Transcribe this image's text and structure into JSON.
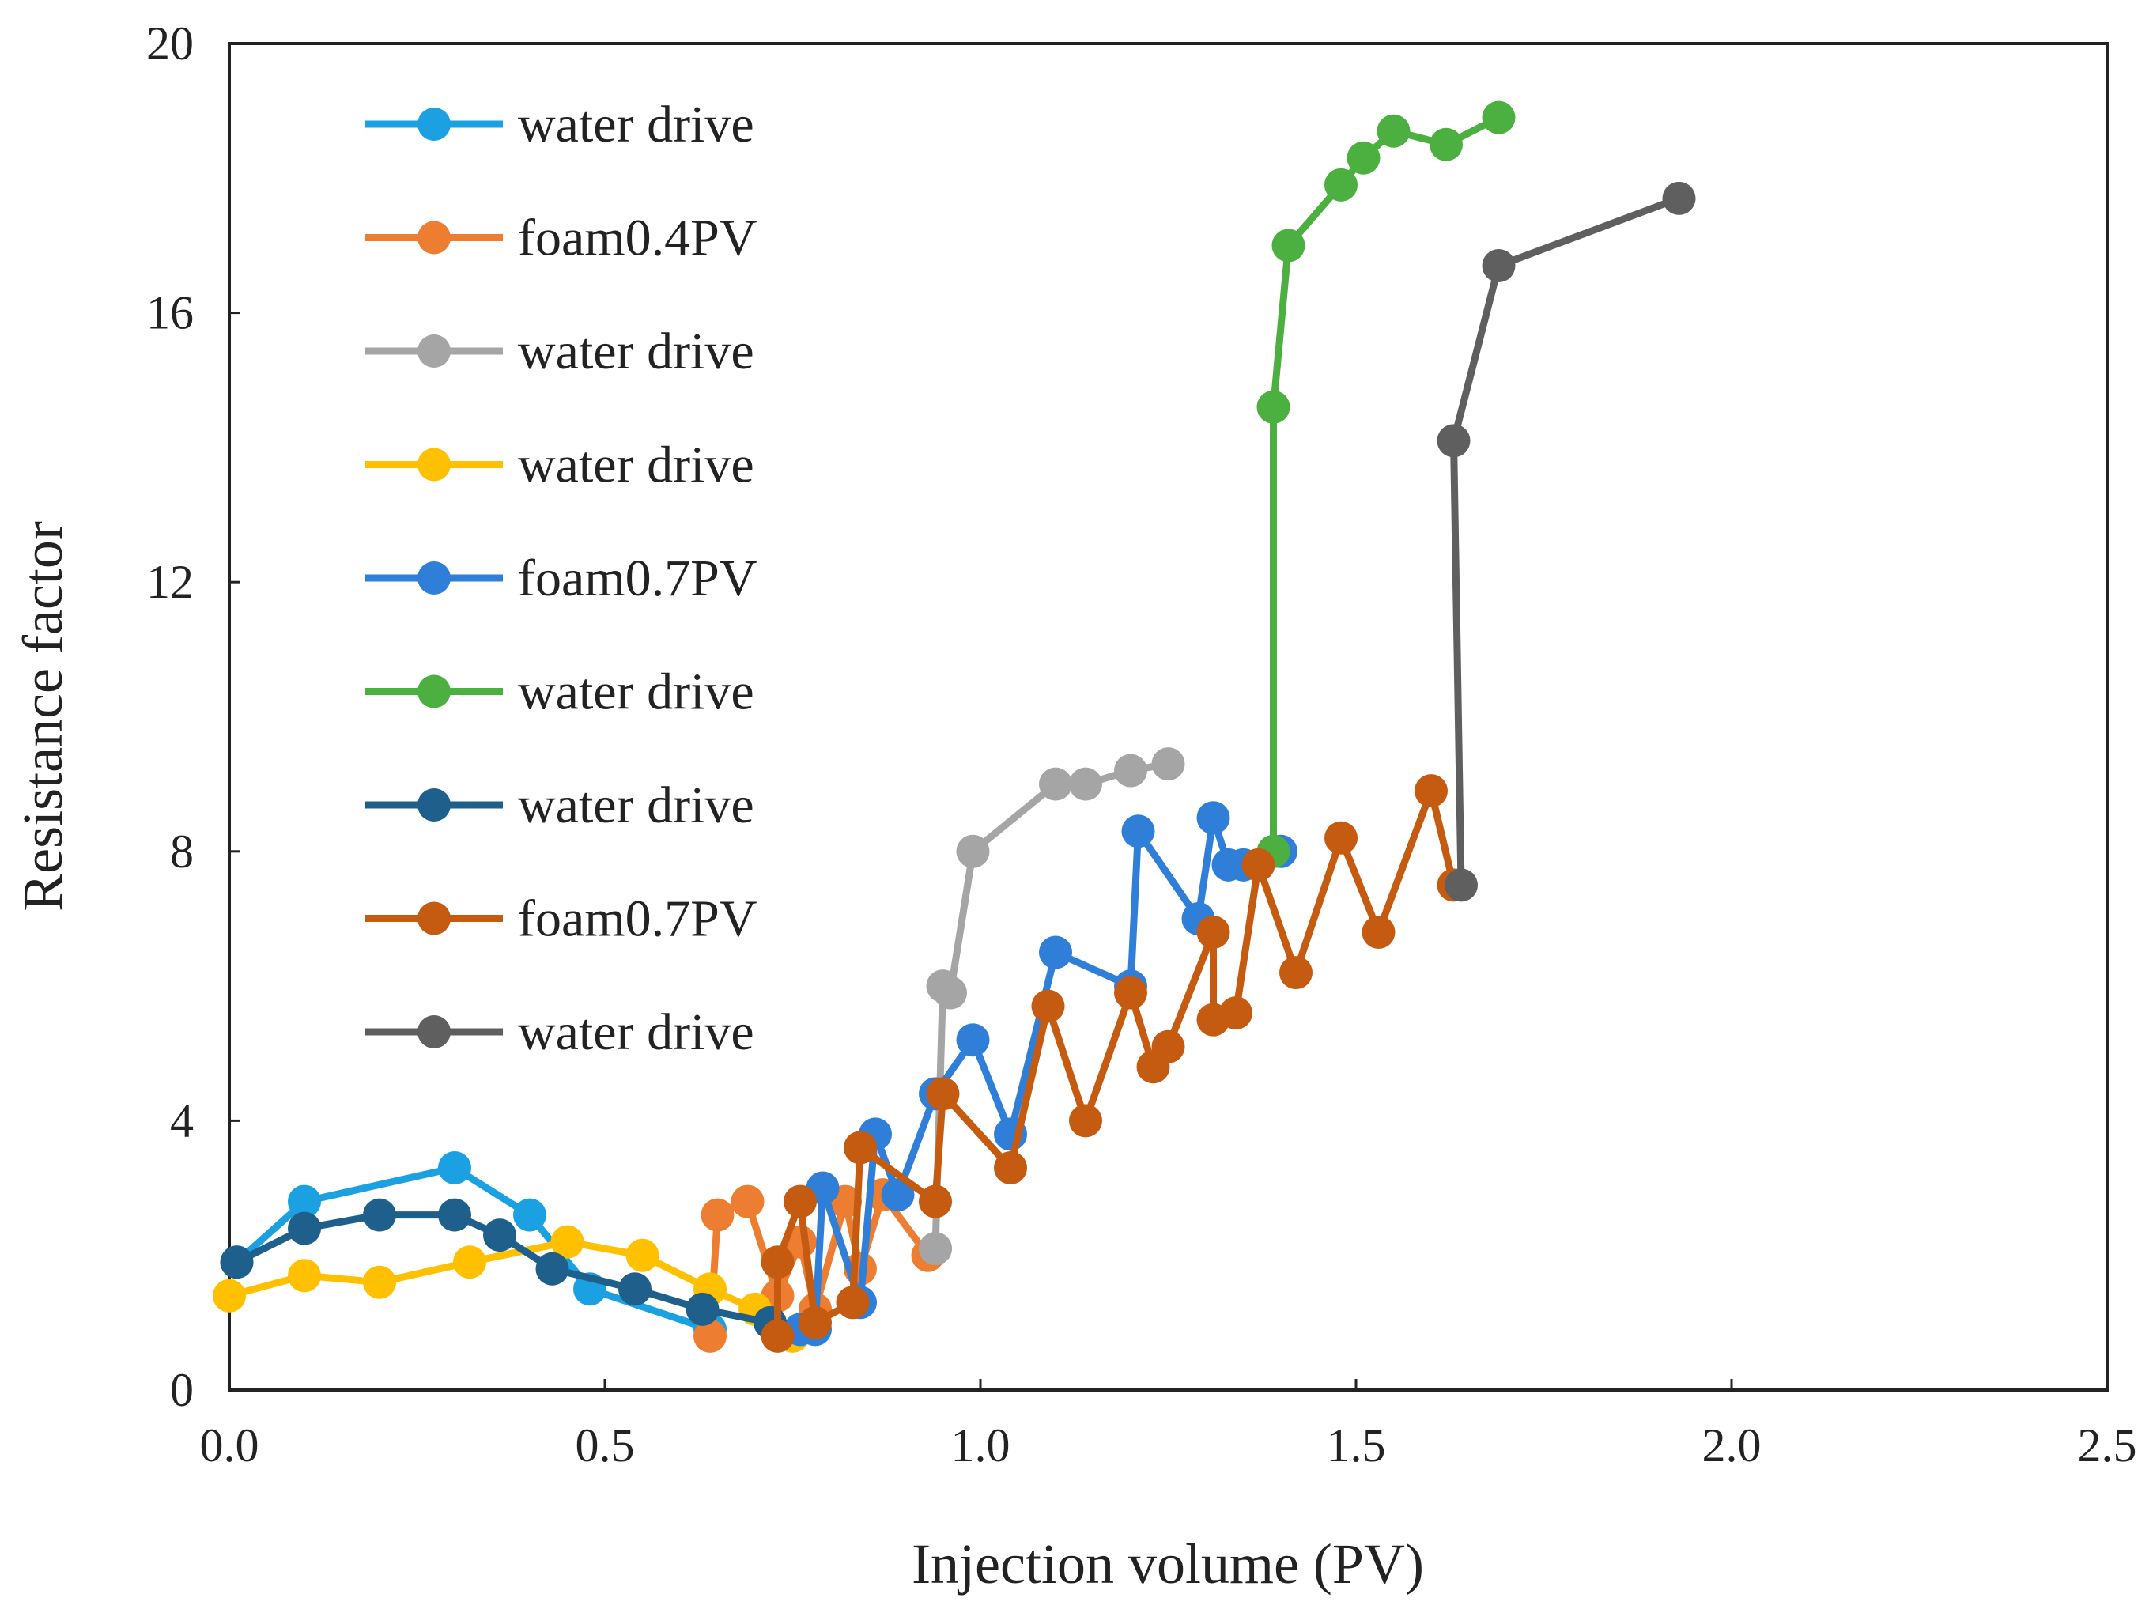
{
  "chart_data": {
    "type": "line",
    "title": "",
    "xlabel": "Injection volume (PV)",
    "ylabel": "Resistance factor",
    "xlim": [
      0,
      2.5
    ],
    "ylim": [
      0,
      20
    ],
    "xticks": [
      "0.0",
      "0.5",
      "1.0",
      "1.5",
      "2.0",
      "2.5"
    ],
    "xtick_values": [
      0,
      0.5,
      1.0,
      1.5,
      2.0,
      2.5
    ],
    "yticks": [
      "0",
      "4",
      "8",
      "12",
      "16",
      "20"
    ],
    "ytick_values": [
      0,
      4,
      8,
      12,
      16,
      20
    ],
    "grid": false,
    "legend_position": "top-left inside",
    "series": [
      {
        "name": "water drive",
        "color": "#1BA1E2",
        "x": [
          0.01,
          0.1,
          0.3,
          0.4,
          0.48,
          0.64
        ],
        "y": [
          1.9,
          2.8,
          3.3,
          2.6,
          1.5,
          0.9
        ]
      },
      {
        "name": "foam0.4PV",
        "color": "#ED7D31",
        "x": [
          0.64,
          0.65,
          0.69,
          0.73,
          0.76,
          0.78,
          0.82,
          0.84,
          0.87,
          0.93,
          0.94
        ],
        "y": [
          0.8,
          2.6,
          2.8,
          1.4,
          2.2,
          1.2,
          2.8,
          1.8,
          2.9,
          2.0,
          2.1
        ]
      },
      {
        "name": "water drive",
        "color": "#A5A5A5",
        "x": [
          0.94,
          0.95,
          0.96,
          0.99,
          1.1,
          1.14,
          1.2,
          1.25
        ],
        "y": [
          2.1,
          6.0,
          5.9,
          8.0,
          9.0,
          9.0,
          9.2,
          9.3
        ]
      },
      {
        "name": "water drive",
        "color": "#FFC000",
        "x": [
          0.0,
          0.1,
          0.2,
          0.32,
          0.45,
          0.55,
          0.64,
          0.7,
          0.75
        ],
        "y": [
          1.4,
          1.7,
          1.6,
          1.9,
          2.2,
          2.0,
          1.5,
          1.2,
          0.8
        ]
      },
      {
        "name": "foam0.7PV",
        "color": "#2F7ED8",
        "x": [
          0.76,
          0.78,
          0.79,
          0.84,
          0.86,
          0.89,
          0.94,
          0.99,
          1.04,
          1.1,
          1.2,
          1.21,
          1.29,
          1.31,
          1.33,
          1.35,
          1.4
        ],
        "y": [
          0.9,
          0.9,
          3.0,
          1.3,
          3.8,
          2.9,
          4.4,
          5.2,
          3.8,
          6.5,
          6.0,
          8.3,
          7.0,
          8.5,
          7.8,
          7.8,
          8.0
        ]
      },
      {
        "name": "water drive",
        "color": "#4CB040",
        "x": [
          1.39,
          1.39,
          1.41,
          1.48,
          1.51,
          1.55,
          1.62,
          1.69
        ],
        "y": [
          8.0,
          14.6,
          17.0,
          17.9,
          18.3,
          18.7,
          18.5,
          18.9
        ]
      },
      {
        "name": "water drive",
        "color": "#1F5F8B",
        "x": [
          0.01,
          0.1,
          0.2,
          0.3,
          0.36,
          0.43,
          0.54,
          0.63,
          0.72
        ],
        "y": [
          1.9,
          2.4,
          2.6,
          2.6,
          2.3,
          1.8,
          1.5,
          1.2,
          1.0
        ]
      },
      {
        "name": "foam0.7PV",
        "color": "#C55A11",
        "x": [
          0.73,
          0.73,
          0.76,
          0.78,
          0.83,
          0.84,
          0.94,
          0.95,
          1.04,
          1.09,
          1.14,
          1.2,
          1.23,
          1.25,
          1.31,
          1.31,
          1.34,
          1.37,
          1.42,
          1.48,
          1.53,
          1.6,
          1.63
        ],
        "y": [
          0.8,
          1.9,
          2.8,
          1.0,
          1.3,
          3.6,
          2.8,
          4.4,
          3.3,
          5.7,
          4.0,
          5.9,
          4.8,
          5.1,
          6.8,
          5.5,
          5.6,
          7.8,
          6.2,
          8.2,
          6.8,
          8.9,
          7.5
        ]
      },
      {
        "name": "water drive",
        "color": "#5F5F5F",
        "x": [
          1.64,
          1.63,
          1.69,
          1.93
        ],
        "y": [
          7.5,
          14.1,
          16.7,
          17.7
        ]
      }
    ]
  }
}
